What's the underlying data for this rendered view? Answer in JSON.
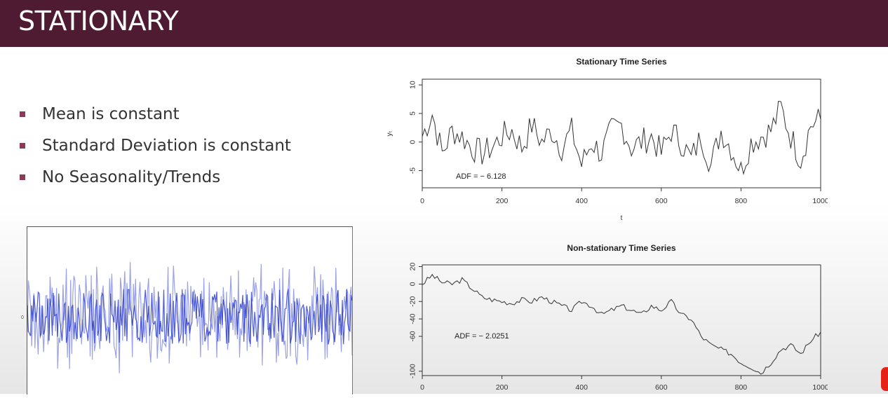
{
  "header": {
    "title": "STATIONARY"
  },
  "bullets": [
    "Mean is constant",
    "Standard Deviation is constant",
    "No Seasonality/Trends"
  ],
  "colors": {
    "header_bg": "#4f1b32",
    "bullet": "#8b3a5c",
    "noise_line": "#2233cc",
    "badge": "#e62117"
  },
  "noise_chart": {
    "y_tick": "0"
  },
  "chart_data": [
    {
      "type": "line",
      "title": "Stationary Time Series",
      "xlabel": "t",
      "ylabel": "yₜ",
      "xlim": [
        0,
        1000
      ],
      "ylim": [
        -8,
        11
      ],
      "xticks": [
        0,
        200,
        400,
        600,
        800,
        1000
      ],
      "yticks": [
        -5,
        0,
        5,
        10
      ],
      "annotation": "ADF = − 6.128",
      "x": [
        0,
        25,
        50,
        75,
        100,
        125,
        150,
        175,
        200,
        225,
        250,
        275,
        300,
        325,
        350,
        375,
        400,
        425,
        450,
        475,
        500,
        525,
        550,
        575,
        600,
        625,
        650,
        675,
        700,
        725,
        750,
        775,
        800,
        825,
        850,
        875,
        900,
        925,
        950,
        975,
        1000
      ],
      "values": [
        1,
        5,
        -2,
        2,
        1,
        -1,
        -2,
        -1,
        1,
        2,
        -1,
        3,
        0,
        2,
        -1,
        2,
        -4,
        0,
        -2,
        2,
        3,
        -1,
        0,
        1,
        -2,
        2,
        0,
        -3,
        1,
        -4,
        2,
        -1,
        -5,
        0,
        1,
        2,
        6,
        1,
        -3,
        3,
        4
      ]
    },
    {
      "type": "line",
      "title": "Non-stationary Time Series",
      "ylim": [
        -105,
        22
      ],
      "xlim": [
        0,
        1000
      ],
      "xticks": [
        0,
        200,
        400,
        600,
        800,
        1000
      ],
      "yticks": [
        20,
        0,
        -20,
        -40,
        -60,
        -100
      ],
      "annotation": "ADF = − 2.0251",
      "x": [
        0,
        25,
        50,
        75,
        100,
        125,
        150,
        175,
        200,
        225,
        250,
        275,
        300,
        325,
        350,
        375,
        400,
        425,
        450,
        475,
        500,
        525,
        550,
        575,
        600,
        625,
        650,
        675,
        700,
        725,
        750,
        775,
        800,
        825,
        850,
        875,
        900,
        925,
        950,
        975,
        1000
      ],
      "values": [
        0,
        10,
        2,
        0,
        5,
        -5,
        -15,
        -18,
        -20,
        -22,
        -18,
        -20,
        -15,
        -20,
        -25,
        -30,
        -20,
        -25,
        -35,
        -30,
        -25,
        -30,
        -35,
        -25,
        -30,
        -20,
        -35,
        -40,
        -60,
        -70,
        -75,
        -80,
        -90,
        -95,
        -102,
        -90,
        -75,
        -70,
        -80,
        -65,
        -55
      ]
    }
  ]
}
